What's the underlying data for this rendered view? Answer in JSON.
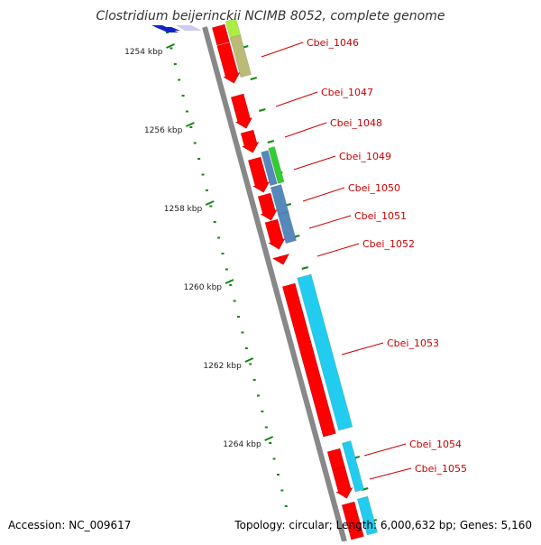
{
  "title": "Clostridium beijerinckii NCIMB 8052, complete genome",
  "footer": {
    "accession": "Accession: NC_009617",
    "topology": "Topology: circular; Length: 6,000,632 bp; Genes: 5,160"
  },
  "scale": {
    "unit": "kbp",
    "ticks": [
      {
        "label": "1254 kbp"
      },
      {
        "label": "1256 kbp"
      },
      {
        "label": "1258 kbp"
      },
      {
        "label": "1260 kbp"
      },
      {
        "label": "1262 kbp"
      },
      {
        "label": "1264 kbp"
      }
    ]
  },
  "colors": {
    "backbone": "#888888",
    "cds": "#ff0000",
    "label": "#cc0000",
    "scale": "#118811",
    "feature_cyan": "#22ccee",
    "feature_steel": "#5588bb",
    "feature_olive": "#bbbb77",
    "feature_green": "#33cc33",
    "feature_lime": "#aaee44",
    "feature_blue": "#1122cc",
    "feature_lavender": "#ccccee"
  },
  "genes": [
    {
      "label": "Cbei_1046"
    },
    {
      "label": "Cbei_1047"
    },
    {
      "label": "Cbei_1048"
    },
    {
      "label": "Cbei_1049"
    },
    {
      "label": "Cbei_1050"
    },
    {
      "label": "Cbei_1051"
    },
    {
      "label": "Cbei_1052"
    },
    {
      "label": "Cbei_1053"
    },
    {
      "label": "Cbei_1054"
    },
    {
      "label": "Cbei_1055"
    }
  ]
}
